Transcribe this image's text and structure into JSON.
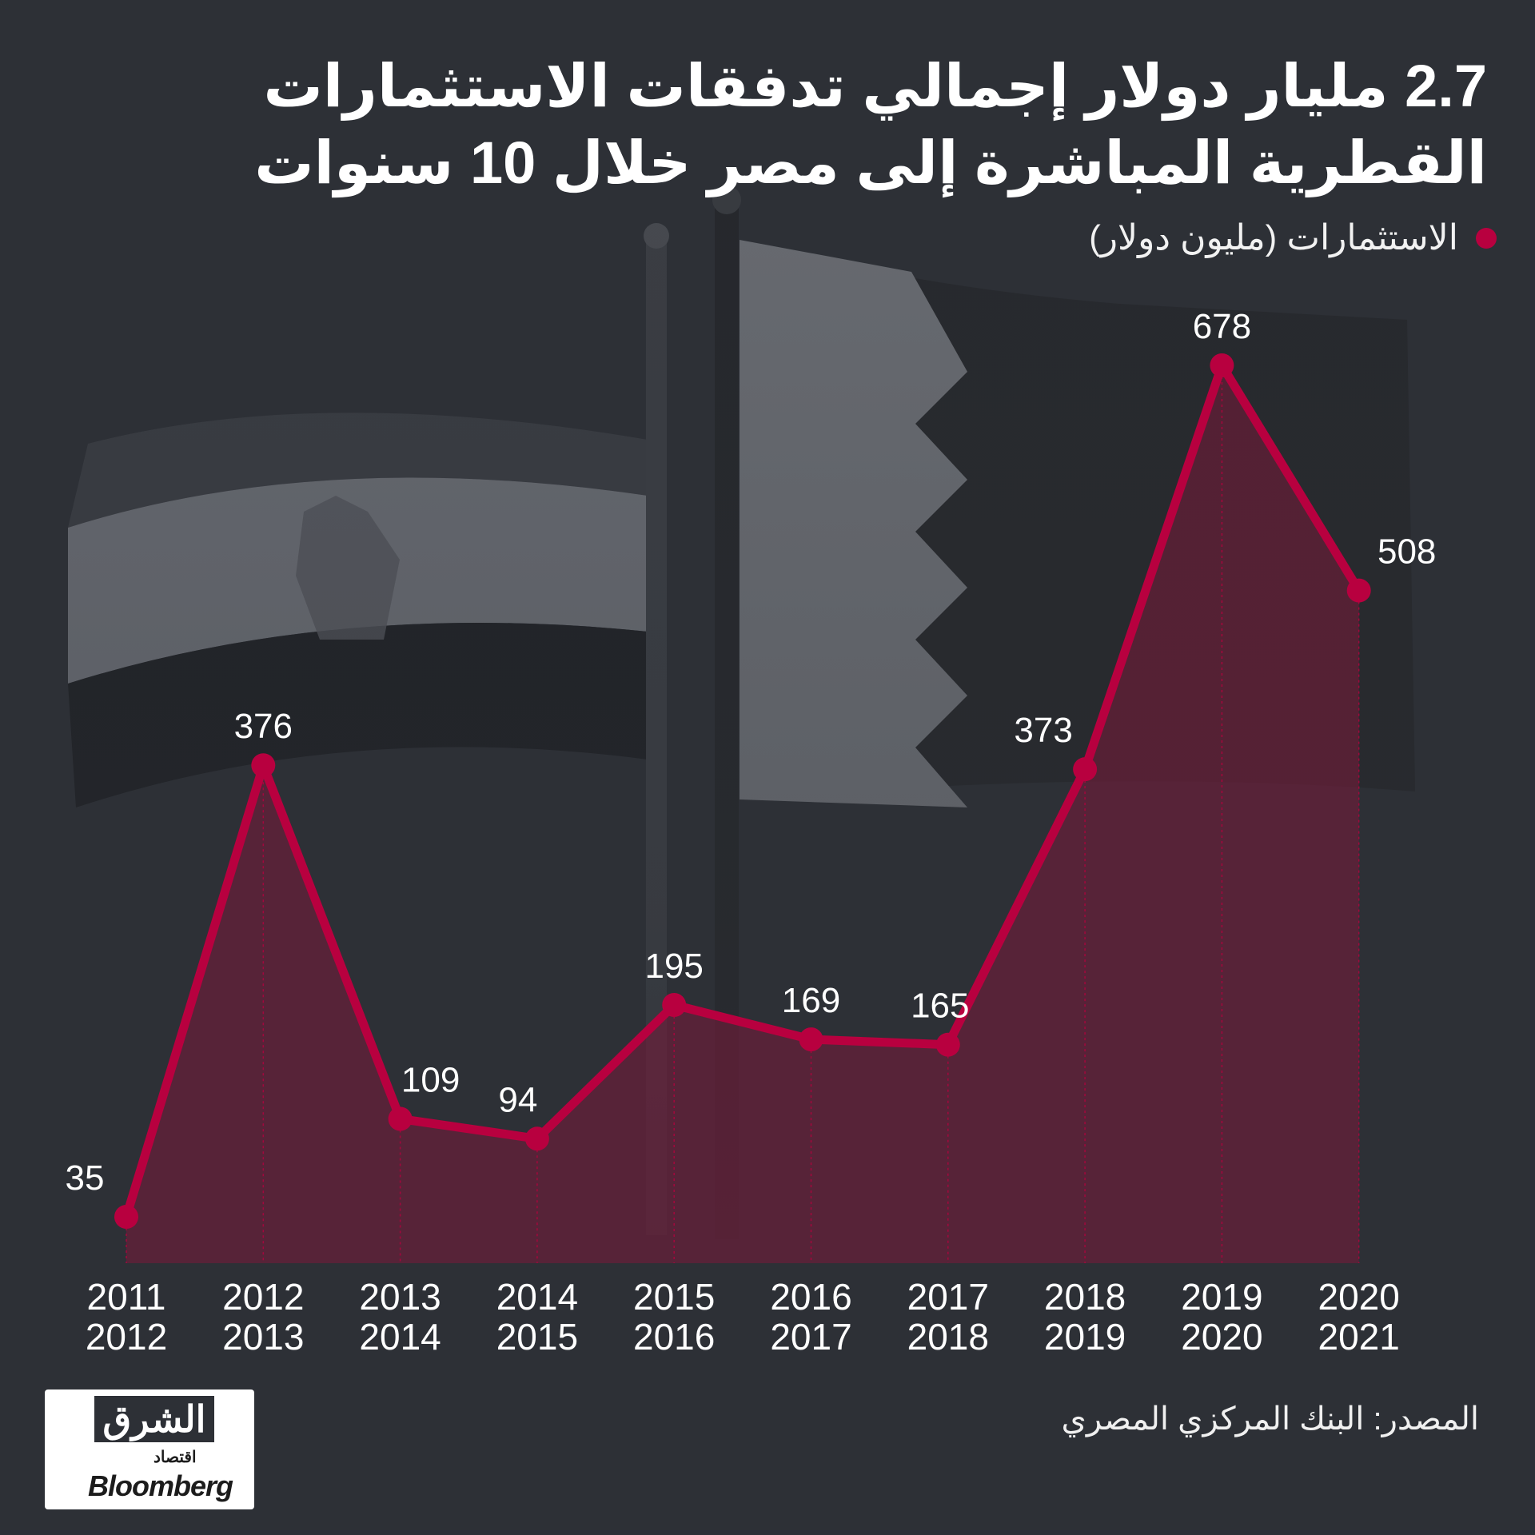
{
  "title_line1": "2.7 مليار دولار إجمالي تدفقات الاستثمارات",
  "title_line2": "القطرية المباشرة إلى مصر خلال 10 سنوات",
  "legend_label": "الاستثمارات (مليون دولار)",
  "source": "المصدر: البنك المركزي المصري",
  "logo": {
    "arabic": "الشرق",
    "sub": "اقتصاد",
    "english": "Bloomberg"
  },
  "colors": {
    "line": "#b8003f",
    "fill": "#7a1a3a",
    "background": "#2d3036"
  },
  "chart_data": {
    "type": "area",
    "x_line1": [
      "2011",
      "2012",
      "2013",
      "2014",
      "2015",
      "2016",
      "2017",
      "2018",
      "2019",
      "2020"
    ],
    "x_line2": [
      "2012",
      "2013",
      "2014",
      "2015",
      "2016",
      "2017",
      "2018",
      "2019",
      "2020",
      "2021"
    ],
    "values": [
      35,
      376,
      109,
      94,
      195,
      169,
      165,
      373,
      678,
      508
    ],
    "series": [
      {
        "name": "الاستثمارات (مليون دولار)",
        "values": [
          35,
          376,
          109,
          94,
          195,
          169,
          165,
          373,
          678,
          508
        ]
      }
    ],
    "ylim": [
      0,
      678
    ],
    "grid": false
  }
}
